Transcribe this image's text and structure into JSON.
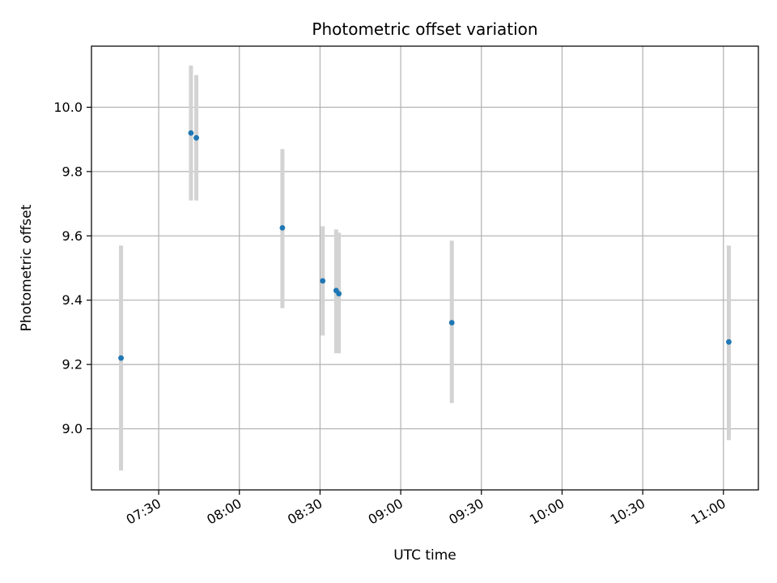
{
  "chart_data": {
    "type": "scatter",
    "title": "Photometric offset variation",
    "xlabel": "UTC time",
    "ylabel": "Photometric offset",
    "x_axis_kind": "time",
    "xlim": [
      "07:05",
      "11:13"
    ],
    "ylim": [
      8.81,
      10.19
    ],
    "x_ticks": [
      "07:30",
      "08:00",
      "08:30",
      "09:00",
      "09:30",
      "10:00",
      "10:30",
      "11:00"
    ],
    "y_ticks": [
      9.0,
      9.2,
      9.4,
      9.6,
      9.8,
      10.0
    ],
    "grid": true,
    "colors": {
      "point": "#1f77b4",
      "error_bar": "#d3d3d3",
      "grid": "#b0b0b0",
      "frame": "#000000"
    },
    "points": [
      {
        "x": "07:16",
        "y": 9.22,
        "y_low": 8.87,
        "y_high": 9.57
      },
      {
        "x": "07:42",
        "y": 9.92,
        "y_low": 9.71,
        "y_high": 10.13
      },
      {
        "x": "07:44",
        "y": 9.905,
        "y_low": 9.71,
        "y_high": 10.1
      },
      {
        "x": "08:16",
        "y": 9.625,
        "y_low": 9.375,
        "y_high": 9.87
      },
      {
        "x": "08:31",
        "y": 9.46,
        "y_low": 9.29,
        "y_high": 9.63
      },
      {
        "x": "08:36",
        "y": 9.43,
        "y_low": 9.235,
        "y_high": 9.62
      },
      {
        "x": "08:37",
        "y": 9.42,
        "y_low": 9.235,
        "y_high": 9.61
      },
      {
        "x": "09:19",
        "y": 9.33,
        "y_low": 9.08,
        "y_high": 9.585
      },
      {
        "x": "11:02",
        "y": 9.27,
        "y_low": 8.965,
        "y_high": 9.57
      }
    ]
  }
}
